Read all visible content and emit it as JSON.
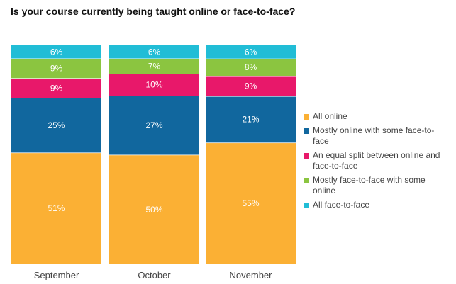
{
  "chart_data": {
    "type": "bar",
    "stacked": true,
    "title": "Is your course currently being taught online or face-to-face?",
    "categories": [
      "September",
      "October",
      "November"
    ],
    "series": [
      {
        "name": "All online",
        "color": "#FBB034",
        "values": [
          51,
          50,
          55
        ],
        "labels": [
          "51%",
          "50%",
          "55%"
        ]
      },
      {
        "name": "Mostly online with some face-to-face",
        "color": "#11679E",
        "values": [
          25,
          27,
          21
        ],
        "labels": [
          "25%",
          "27%",
          "21%"
        ]
      },
      {
        "name": "An equal split between online and face-to-face",
        "color": "#E8186A",
        "values": [
          9,
          10,
          9
        ],
        "labels": [
          "9%",
          "10%",
          "9%"
        ]
      },
      {
        "name": "Mostly face-to-face with some online",
        "color": "#8BC540",
        "values": [
          9,
          7,
          8
        ],
        "labels": [
          "9%",
          "7%",
          "8%"
        ]
      },
      {
        "name": "All face-to-face",
        "color": "#21BDD6",
        "values": [
          6,
          6,
          6
        ],
        "labels": [
          "6%",
          "6%",
          "6%"
        ]
      }
    ],
    "ylim": [
      0,
      100
    ],
    "legend": "right"
  }
}
